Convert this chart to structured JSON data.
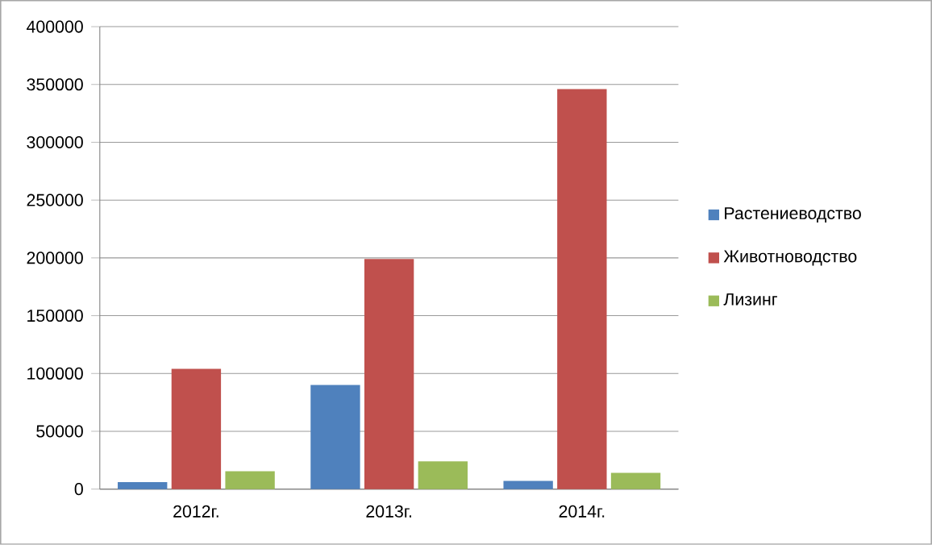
{
  "chart_data": {
    "type": "bar",
    "categories": [
      "2012г.",
      "2013г.",
      "2014г."
    ],
    "series": [
      {
        "name": "Растениеводство",
        "color": "#4f81bd",
        "values": [
          6000,
          90000,
          7000
        ]
      },
      {
        "name": "Животноводство",
        "color": "#c0504d",
        "values": [
          104000,
          199000,
          346000
        ]
      },
      {
        "name": "Лизинг",
        "color": "#9bbb59",
        "values": [
          15500,
          24000,
          14000
        ]
      }
    ],
    "ylim": [
      0,
      400000
    ],
    "yticks": [
      0,
      50000,
      100000,
      150000,
      200000,
      250000,
      300000,
      350000,
      400000
    ],
    "grid": "y",
    "legend": "right"
  }
}
